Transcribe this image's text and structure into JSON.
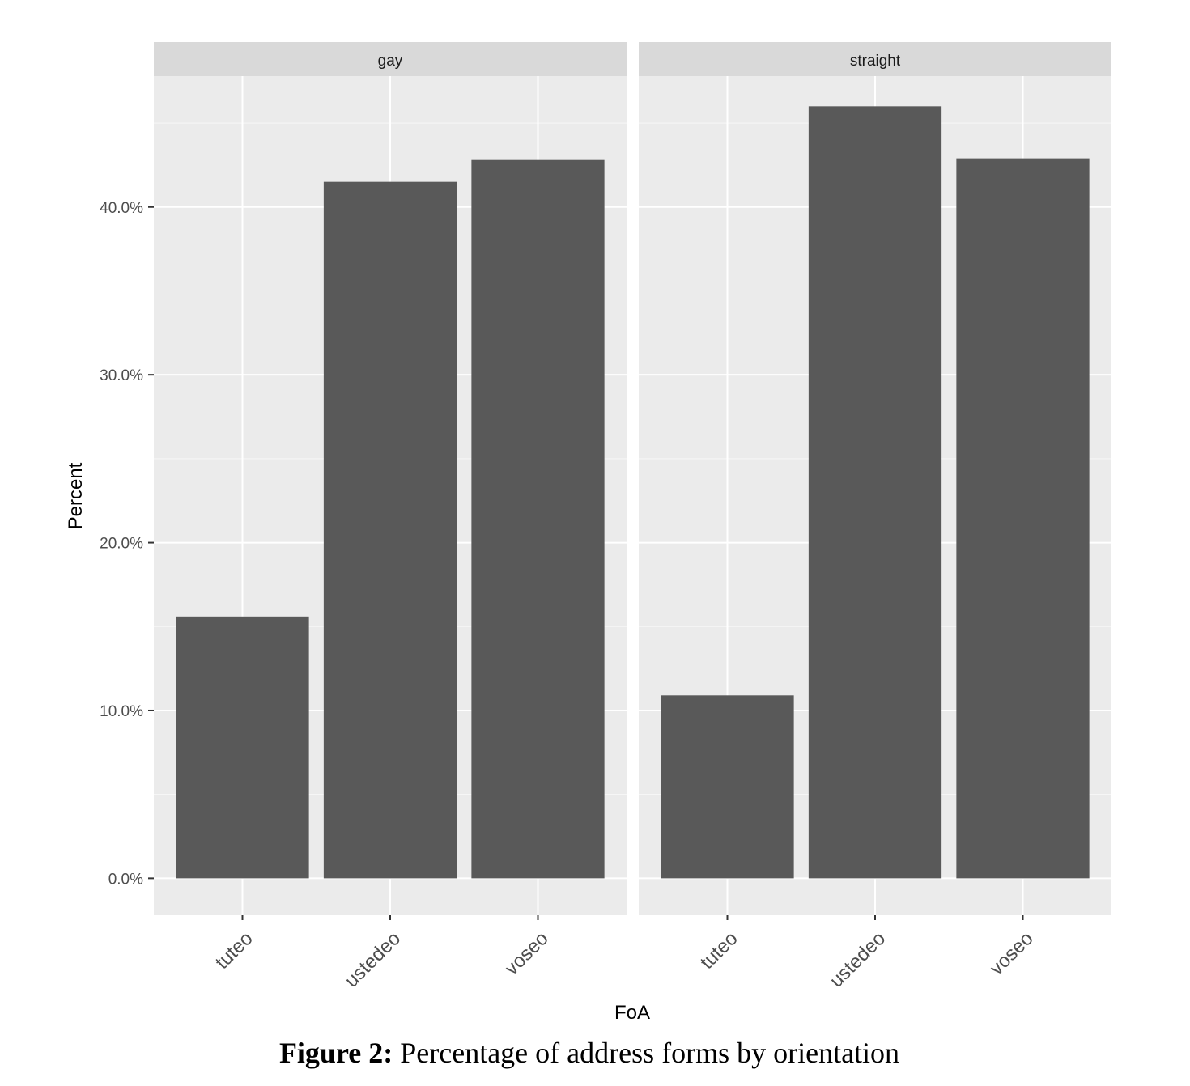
{
  "chart_data": {
    "type": "bar",
    "facets": [
      "gay",
      "straight"
    ],
    "categories": [
      "tuteo",
      "ustedeo",
      "voseo"
    ],
    "series": [
      {
        "facet": "gay",
        "values": [
          15.6,
          41.5,
          42.8
        ]
      },
      {
        "facet": "straight",
        "values": [
          10.9,
          46.0,
          42.9
        ]
      }
    ],
    "xlabel": "FoA",
    "ylabel": "Percent",
    "ylim": [
      -2.2,
      47.8
    ],
    "yticks": [
      "0.0%",
      "10.0%",
      "20.0%",
      "30.0%",
      "40.0%"
    ],
    "ytick_values": [
      0,
      10,
      20,
      30,
      40
    ],
    "grid": true,
    "colors": {
      "bar": "#595959",
      "panel": "#ebebeb",
      "strip": "#d9d9d9",
      "grid": "#ffffff"
    }
  },
  "caption": {
    "label": "Figure 2:",
    "text": " Percentage of address forms by orientation"
  }
}
